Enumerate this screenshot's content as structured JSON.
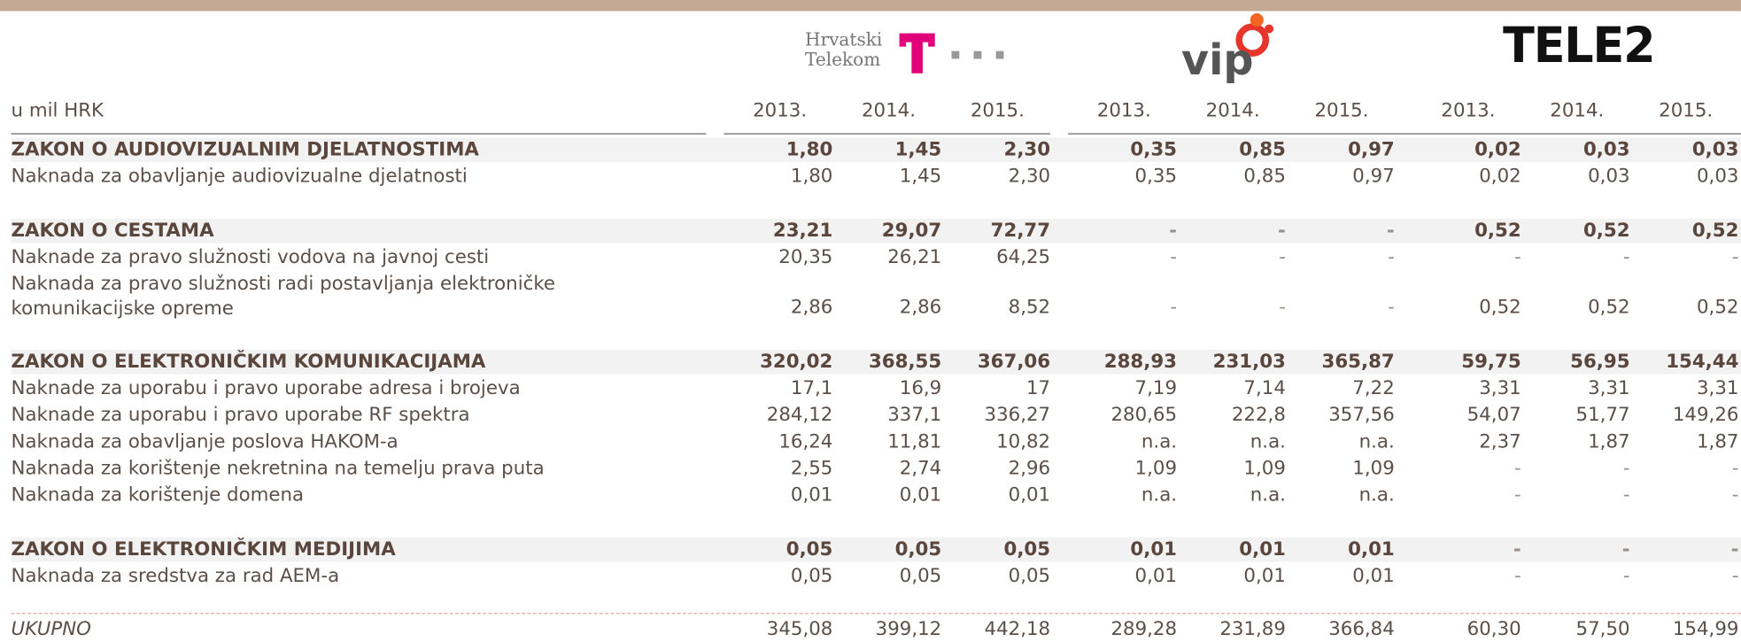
{
  "header": {
    "logos": {
      "ht": [
        "Hrvatski",
        "Telekom"
      ],
      "vip": "vip",
      "tele2": "TELE2"
    },
    "unit": "u mil HRK",
    "years": [
      "2013.",
      "2014.",
      "2015.",
      "2013.",
      "2014.",
      "2015.",
      "2013.",
      "2014.",
      "2015."
    ]
  },
  "table": {
    "rows": [
      {
        "kind": "section",
        "label": "ZAKON O AUDIOVIZUALNIM DJELATNOSTIMA",
        "values": [
          "1,80",
          "1,45",
          "2,30",
          "0,35",
          "0,85",
          "0,97",
          "0,02",
          "0,03",
          "0,03"
        ]
      },
      {
        "kind": "item",
        "label": "Naknada za obavljanje audiovizualne djelatnosti",
        "values": [
          "1,80",
          "1,45",
          "2,30",
          "0,35",
          "0,85",
          "0,97",
          "0,02",
          "0,03",
          "0,03"
        ]
      },
      {
        "kind": "section",
        "label": "ZAKON O CESTAMA",
        "values": [
          "23,21",
          "29,07",
          "72,77",
          "-",
          "-",
          "-",
          "0,52",
          "0,52",
          "0,52"
        ]
      },
      {
        "kind": "item",
        "label": "Naknade za pravo služnosti vodova na javnoj cesti",
        "values": [
          "20,35",
          "26,21",
          "64,25",
          "-",
          "-",
          "-",
          "-",
          "-",
          "-"
        ]
      },
      {
        "kind": "item2",
        "label": "Naknada za pravo služnosti radi postavljanja elektroničke komunikacijske opreme",
        "values": [
          "2,86",
          "2,86",
          "8,52",
          "-",
          "-",
          "-",
          "0,52",
          "0,52",
          "0,52"
        ]
      },
      {
        "kind": "section",
        "label": "ZAKON O ELEKTRONIČKIM KOMUNIKACIJAMA",
        "values": [
          "320,02",
          "368,55",
          "367,06",
          "288,93",
          "231,03",
          "365,87",
          "59,75",
          "56,95",
          "154,44"
        ]
      },
      {
        "kind": "item",
        "label": "Naknade za uporabu i pravo uporabe adresa i brojeva",
        "values": [
          "17,1",
          "16,9",
          "17",
          "7,19",
          "7,14",
          "7,22",
          "3,31",
          "3,31",
          "3,31"
        ]
      },
      {
        "kind": "item",
        "label": "Naknade za uporabu i pravo uporabe RF spektra",
        "values": [
          "284,12",
          "337,1",
          "336,27",
          "280,65",
          "222,8",
          "357,56",
          "54,07",
          "51,77",
          "149,26"
        ]
      },
      {
        "kind": "item",
        "label": "Naknada za obavljanje poslova HAKOM-a",
        "values": [
          "16,24",
          "11,81",
          "10,82",
          "n.a.",
          "n.a.",
          "n.a.",
          "2,37",
          "1,87",
          "1,87"
        ]
      },
      {
        "kind": "item",
        "label": "Naknada za korištenje nekretnina na temelju prava puta",
        "values": [
          "2,55",
          "2,74",
          "2,96",
          "1,09",
          "1,09",
          "1,09",
          "-",
          "-",
          "-"
        ]
      },
      {
        "kind": "item",
        "label": "Naknada za korištenje domena",
        "values": [
          "0,01",
          "0,01",
          "0,01",
          "n.a.",
          "n.a.",
          "n.a.",
          "-",
          "-",
          "-"
        ]
      },
      {
        "kind": "section",
        "label": "ZAKON O ELEKTRONIČKIM MEDIJIMA",
        "values": [
          "0,05",
          "0,05",
          "0,05",
          "0,01",
          "0,01",
          "0,01",
          "-",
          "-",
          "-"
        ]
      },
      {
        "kind": "item",
        "label": "Naknada za sredstva za rad AEM-a",
        "values": [
          "0,05",
          "0,05",
          "0,05",
          "0,01",
          "0,01",
          "0,01",
          "-",
          "-",
          "-"
        ]
      },
      {
        "kind": "total",
        "label": "UKUPNO",
        "values": [
          "345,08",
          "399,12",
          "442,18",
          "289,28",
          "231,89",
          "366,84",
          "60,30",
          "57,50",
          "154,99"
        ]
      }
    ]
  }
}
